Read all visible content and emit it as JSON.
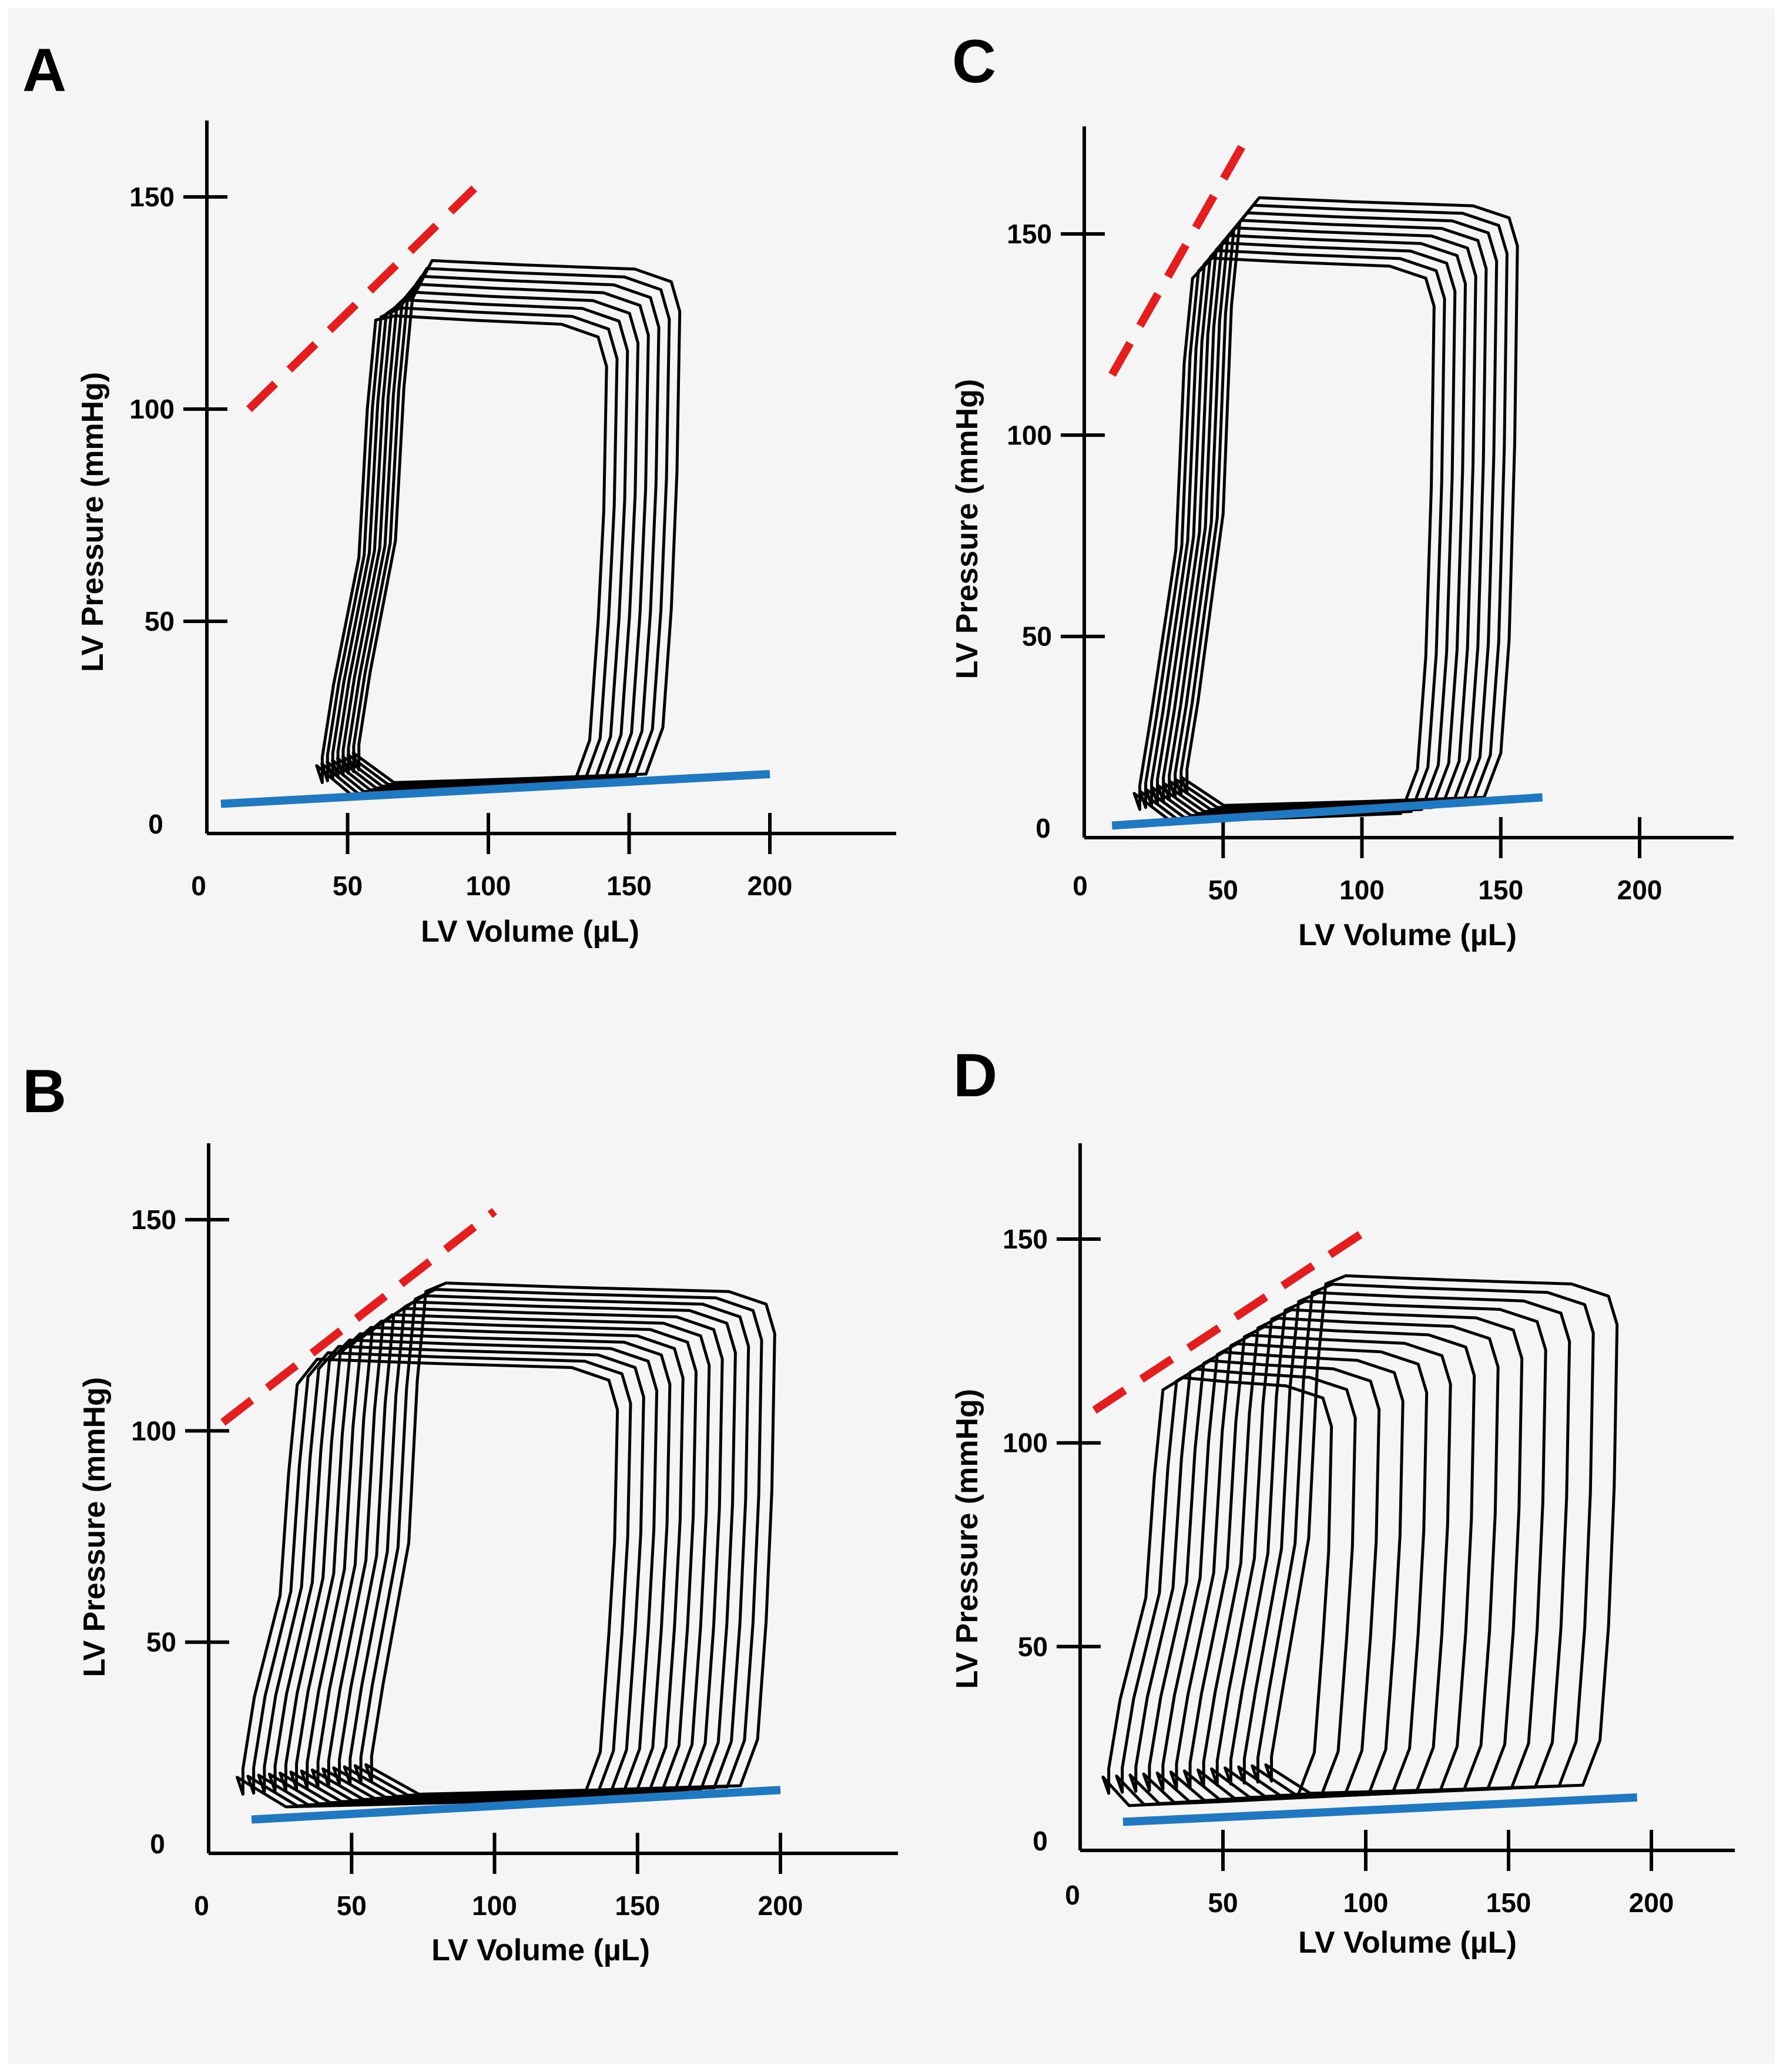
{
  "colors": {
    "espvr": "#e31e1e",
    "edpvr": "#1f78c0",
    "loops": "#000000",
    "background": "#f5f5f5"
  },
  "chart_data": [
    {
      "panel": "A",
      "type": "line",
      "xlabel": "LV Volume (µL)",
      "ylabel": "LV Pressure (mmHg)",
      "xlim": [
        0,
        230
      ],
      "ylim": [
        0,
        165
      ],
      "xticks": [
        50,
        100,
        150,
        200
      ],
      "yticks": [
        50,
        100,
        150
      ],
      "origin_label": "0",
      "espvr": {
        "x": [
          15,
          95
        ],
        "y": [
          100,
          152
        ]
      },
      "edpvr": {
        "x": [
          5,
          200
        ],
        "y": [
          7,
          14
        ]
      },
      "loops": {
        "count": 8,
        "first": {
          "ves": 59,
          "ved": 134,
          "pes": 120,
          "ped": 10,
          "pmax": 120
        },
        "last": {
          "ves": 72,
          "ved": 160,
          "pes": 125,
          "ped": 13,
          "pmax": 133
        },
        "min_volume": 35,
        "max_volume": 170
      }
    },
    {
      "panel": "B",
      "type": "line",
      "xlabel": "LV Volume (µL)",
      "ylabel": "LV Pressure (mmHg)",
      "xlim": [
        0,
        230
      ],
      "ylim": [
        0,
        165
      ],
      "xticks": [
        50,
        100,
        150,
        200
      ],
      "yticks": [
        50,
        100,
        150
      ],
      "origin_label": "0",
      "espvr": {
        "x": [
          5,
          100
        ],
        "y": [
          102,
          152
        ]
      },
      "edpvr": {
        "x": [
          15,
          200
        ],
        "y": [
          8,
          15
        ]
      },
      "loops": {
        "count": 13,
        "first": {
          "ves": 30,
          "ved": 135,
          "pes": 110,
          "ped": 12,
          "pmax": 115
        },
        "last": {
          "ves": 75,
          "ved": 190,
          "pes": 132,
          "ped": 15,
          "pmax": 133
        },
        "min_volume": 28,
        "max_volume": 215
      }
    },
    {
      "panel": "C",
      "type": "line",
      "xlabel": "LV Volume (µL)",
      "ylabel": "LV Pressure (mmHg)",
      "xlim": [
        0,
        225
      ],
      "ylim": [
        0,
        170
      ],
      "xticks": [
        50,
        100,
        150,
        200
      ],
      "yticks": [
        50,
        100,
        150
      ],
      "origin_label": "0",
      "espvr": {
        "x": [
          10,
          57
        ],
        "y": [
          115,
          172
        ]
      },
      "edpvr": {
        "x": [
          10,
          165
        ],
        "y": [
          3,
          10
        ]
      },
      "loops": {
        "count": 9,
        "first": {
          "ves": 38,
          "ved": 118,
          "pes": 138,
          "ped": 5,
          "pmax": 142
        },
        "last": {
          "ves": 55,
          "ved": 148,
          "pes": 152,
          "ped": 9,
          "pmax": 157
        },
        "min_volume": 36,
        "max_volume": 150
      }
    },
    {
      "panel": "D",
      "type": "line",
      "xlabel": "LV Volume (µL)",
      "ylabel": "LV Pressure (mmHg)",
      "xlim": [
        0,
        225
      ],
      "ylim": [
        0,
        170
      ],
      "xticks": [
        50,
        100,
        150,
        200
      ],
      "yticks": [
        50,
        100,
        150
      ],
      "origin_label": "0",
      "espvr": {
        "x": [
          5,
          100
        ],
        "y": [
          108,
          152
        ]
      },
      "edpvr": {
        "x": [
          15,
          195
        ],
        "y": [
          7,
          13
        ]
      },
      "loops": {
        "count": 13,
        "first": {
          "ves": 28,
          "ved": 80,
          "pes": 112,
          "ped": 12,
          "pmax": 114
        },
        "last": {
          "ves": 85,
          "ved": 180,
          "pes": 138,
          "ped": 15,
          "pmax": 139
        },
        "min_volume": 28,
        "max_volume": 182
      }
    }
  ]
}
